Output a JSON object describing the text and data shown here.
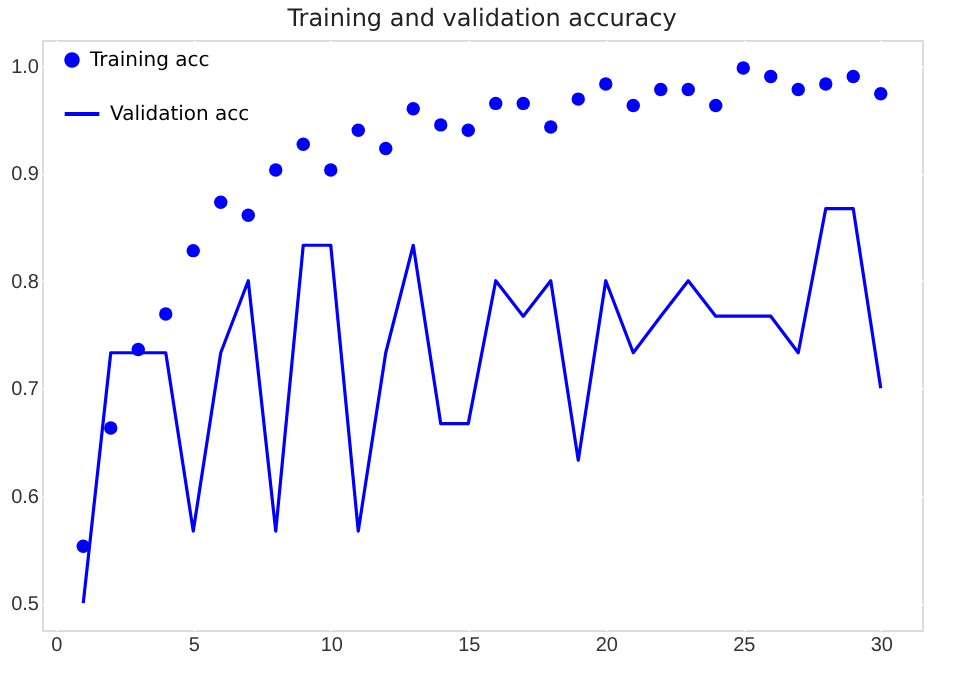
{
  "chart_data": {
    "type": "line",
    "title": "Training and validation accuracy",
    "x": [
      1,
      2,
      3,
      4,
      5,
      6,
      7,
      8,
      9,
      10,
      11,
      12,
      13,
      14,
      15,
      16,
      17,
      18,
      19,
      20,
      21,
      22,
      23,
      24,
      25,
      26,
      27,
      28,
      29,
      30
    ],
    "series": [
      {
        "name": "Training acc",
        "type": "scatter",
        "marker": "circle",
        "color": "#0000ff",
        "values": [
          0.553,
          0.663,
          0.736,
          0.769,
          0.828,
          0.873,
          0.861,
          0.903,
          0.927,
          0.903,
          0.94,
          0.923,
          0.96,
          0.945,
          0.94,
          0.965,
          0.965,
          0.943,
          0.969,
          0.983,
          0.963,
          0.978,
          0.978,
          0.963,
          0.998,
          0.99,
          0.978,
          0.983,
          0.99,
          0.974
        ]
      },
      {
        "name": "Validation acc",
        "line_style": "solid",
        "color": "#0000ff",
        "values": [
          0.5,
          0.733,
          0.733,
          0.733,
          0.567,
          0.733,
          0.8,
          0.567,
          0.833,
          0.833,
          0.567,
          0.733,
          0.833,
          0.667,
          0.667,
          0.8,
          0.767,
          0.8,
          0.633,
          0.8,
          0.733,
          0.767,
          0.8,
          0.767,
          0.767,
          0.767,
          0.733,
          0.867,
          0.867,
          0.7
        ]
      }
    ],
    "xlim": [
      -0.5,
      31.5
    ],
    "xticks": [
      0,
      5,
      10,
      15,
      20,
      25,
      30
    ],
    "ylim": [
      0.475,
      1.024
    ],
    "yticks": [
      0.5,
      0.6,
      0.7,
      0.8,
      0.9,
      {
        "value": 1.0,
        "label": "1.0"
      }
    ],
    "grid": true,
    "legend": "top left"
  }
}
